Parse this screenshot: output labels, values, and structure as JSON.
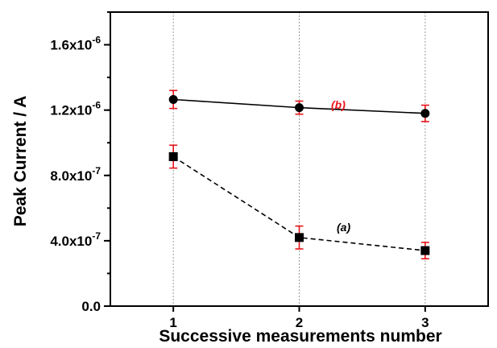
{
  "chart_data": {
    "type": "line",
    "xlabel": "Successive measurements number",
    "ylabel": "Peak Current / A",
    "x": [
      1,
      2,
      3
    ],
    "xlim": [
      0.5,
      3.5
    ],
    "ylim": [
      0,
      1.8e-06
    ],
    "x_ticks": [
      {
        "value": 1,
        "label": "1"
      },
      {
        "value": 2,
        "label": "2"
      },
      {
        "value": 3,
        "label": "3"
      }
    ],
    "y_ticks": [
      {
        "value": 0,
        "mantissa": "0.0",
        "exp": ""
      },
      {
        "value": 4e-07,
        "mantissa": "4.0x10",
        "exp": "-7"
      },
      {
        "value": 8e-07,
        "mantissa": "8.0x10",
        "exp": "-7"
      },
      {
        "value": 1.2e-06,
        "mantissa": "1.2x10",
        "exp": "-6"
      },
      {
        "value": 1.6e-06,
        "mantissa": "1.6x10",
        "exp": "-6"
      }
    ],
    "grid": {
      "vertical": true,
      "horizontal": false
    },
    "series": [
      {
        "name": "(b)",
        "values": [
          1.265e-06,
          1.215e-06,
          1.18e-06
        ],
        "errors": [
          5.5e-08,
          4e-08,
          5e-08
        ],
        "marker": "circle",
        "line": "solid",
        "label_color": "#e8141a"
      },
      {
        "name": "(a)",
        "values": [
          9.15e-07,
          4.2e-07,
          3.4e-07
        ],
        "errors": [
          7e-08,
          7e-08,
          5e-08
        ],
        "marker": "square",
        "line": "dashed",
        "label_color": "#000000"
      }
    ],
    "colors": {
      "line": "#000000",
      "error_bar": "#e8141a",
      "grid": "#9a9a9a"
    }
  }
}
